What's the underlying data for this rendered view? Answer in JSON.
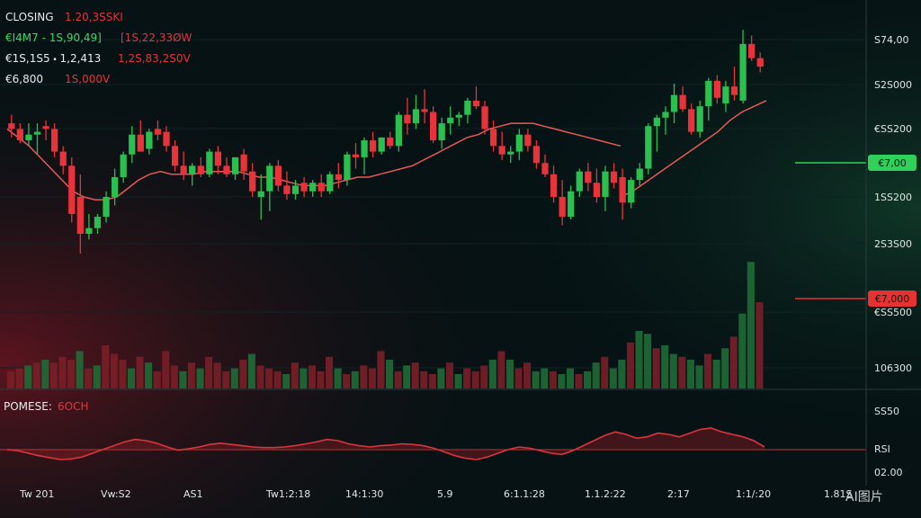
{
  "header": {
    "line1": {
      "label": "CLOSING",
      "value": "1.20,3SSKI"
    },
    "line2": {
      "label": "€I4M7 - 1S,90,49]",
      "value": "[1S,22,33ØW"
    },
    "line3": {
      "label": "€1S,1S5 ⬝ 1,2,413",
      "value": "1,2S,83,2S0V"
    },
    "line4": {
      "label": "€6,800",
      "value": "1S,000V"
    }
  },
  "price_axis_labels": [
    "S74,00",
    "S2S000",
    "€SS200",
    "1SS200",
    "2S3S00",
    "€SS500",
    "106300"
  ],
  "price_tags": [
    {
      "text": "€7,00",
      "color": "#2fd15a"
    },
    {
      "text": "€7,000",
      "color": "#e63232"
    }
  ],
  "indicator": {
    "label": "POMESE:",
    "value": "6OCH",
    "axis_labels": [
      "SS50",
      "RSI",
      "02.00"
    ]
  },
  "time_labels": [
    "Tw 201",
    "Vw:S2",
    "AS1",
    "Tw1:2:18",
    "14:1:30",
    "5.9",
    "6:1.1:28",
    "1.1.2:22",
    "2:17",
    "1:1/:20",
    "1.81S"
  ],
  "watermark": "AI图片",
  "colors": {
    "up": "#2bbf4f",
    "down": "#e8333a",
    "ma": "#e85a5a",
    "rsi": "#d8363c",
    "background": "#061214"
  },
  "chart_data": [
    {
      "type": "candlestick",
      "title": "",
      "xlabel": "",
      "ylabel": "",
      "ylim": [
        0,
        100
      ],
      "candles": [
        {
          "o": 66,
          "h": 69,
          "l": 61,
          "c": 64
        },
        {
          "o": 64,
          "h": 66,
          "l": 59,
          "c": 60
        },
        {
          "o": 60,
          "h": 66,
          "l": 58,
          "c": 62
        },
        {
          "o": 62,
          "h": 66,
          "l": 55,
          "c": 63
        },
        {
          "o": 65,
          "h": 67,
          "l": 60,
          "c": 64
        },
        {
          "o": 64,
          "h": 66,
          "l": 54,
          "c": 56
        },
        {
          "o": 56,
          "h": 58,
          "l": 48,
          "c": 51
        },
        {
          "o": 51,
          "h": 54,
          "l": 31,
          "c": 34
        },
        {
          "o": 40,
          "h": 48,
          "l": 20,
          "c": 27
        },
        {
          "o": 27,
          "h": 34,
          "l": 25,
          "c": 29
        },
        {
          "o": 29,
          "h": 34,
          "l": 27,
          "c": 33
        },
        {
          "o": 33,
          "h": 42,
          "l": 31,
          "c": 40
        },
        {
          "o": 40,
          "h": 50,
          "l": 37,
          "c": 47
        },
        {
          "o": 47,
          "h": 56,
          "l": 45,
          "c": 55
        },
        {
          "o": 55,
          "h": 65,
          "l": 52,
          "c": 62
        },
        {
          "o": 62,
          "h": 67,
          "l": 56,
          "c": 56
        },
        {
          "o": 57,
          "h": 64,
          "l": 55,
          "c": 63
        },
        {
          "o": 64,
          "h": 67,
          "l": 60,
          "c": 62
        },
        {
          "o": 63,
          "h": 65,
          "l": 56,
          "c": 58
        },
        {
          "o": 58,
          "h": 60,
          "l": 49,
          "c": 51
        },
        {
          "o": 51,
          "h": 56,
          "l": 46,
          "c": 48
        },
        {
          "o": 48,
          "h": 52,
          "l": 44,
          "c": 51
        },
        {
          "o": 51,
          "h": 54,
          "l": 47,
          "c": 48
        },
        {
          "o": 48,
          "h": 57,
          "l": 47,
          "c": 56
        },
        {
          "o": 56,
          "h": 58,
          "l": 48,
          "c": 51
        },
        {
          "o": 51,
          "h": 54,
          "l": 47,
          "c": 48
        },
        {
          "o": 48,
          "h": 54,
          "l": 46,
          "c": 54
        },
        {
          "o": 55,
          "h": 57,
          "l": 46,
          "c": 49
        },
        {
          "o": 49,
          "h": 52,
          "l": 40,
          "c": 42
        },
        {
          "o": 40,
          "h": 48,
          "l": 32,
          "c": 42
        },
        {
          "o": 42,
          "h": 52,
          "l": 35,
          "c": 51
        },
        {
          "o": 51,
          "h": 53,
          "l": 42,
          "c": 44
        },
        {
          "o": 44,
          "h": 49,
          "l": 39,
          "c": 41
        },
        {
          "o": 41,
          "h": 46,
          "l": 39,
          "c": 44
        },
        {
          "o": 45,
          "h": 47,
          "l": 40,
          "c": 42
        },
        {
          "o": 42,
          "h": 46,
          "l": 40,
          "c": 45
        },
        {
          "o": 45,
          "h": 48,
          "l": 40,
          "c": 42
        },
        {
          "o": 42,
          "h": 49,
          "l": 41,
          "c": 48
        },
        {
          "o": 48,
          "h": 52,
          "l": 43,
          "c": 46
        },
        {
          "o": 46,
          "h": 56,
          "l": 44,
          "c": 55
        },
        {
          "o": 55,
          "h": 59,
          "l": 50,
          "c": 54
        },
        {
          "o": 54,
          "h": 61,
          "l": 48,
          "c": 60
        },
        {
          "o": 60,
          "h": 63,
          "l": 54,
          "c": 56
        },
        {
          "o": 56,
          "h": 61,
          "l": 55,
          "c": 61
        },
        {
          "o": 61,
          "h": 63,
          "l": 57,
          "c": 58
        },
        {
          "o": 58,
          "h": 70,
          "l": 56,
          "c": 69
        },
        {
          "o": 69,
          "h": 75,
          "l": 62,
          "c": 66
        },
        {
          "o": 66,
          "h": 76,
          "l": 64,
          "c": 71
        },
        {
          "o": 71,
          "h": 78,
          "l": 66,
          "c": 70
        },
        {
          "o": 70,
          "h": 72,
          "l": 59,
          "c": 60
        },
        {
          "o": 60,
          "h": 68,
          "l": 57,
          "c": 66
        },
        {
          "o": 66,
          "h": 72,
          "l": 62,
          "c": 68
        },
        {
          "o": 68,
          "h": 70,
          "l": 65,
          "c": 69
        },
        {
          "o": 69,
          "h": 75,
          "l": 66,
          "c": 74
        },
        {
          "o": 74,
          "h": 79,
          "l": 71,
          "c": 72
        },
        {
          "o": 72,
          "h": 74,
          "l": 62,
          "c": 64
        },
        {
          "o": 64,
          "h": 67,
          "l": 56,
          "c": 58
        },
        {
          "o": 58,
          "h": 63,
          "l": 53,
          "c": 55
        },
        {
          "o": 55,
          "h": 58,
          "l": 52,
          "c": 56
        },
        {
          "o": 56,
          "h": 64,
          "l": 53,
          "c": 62
        },
        {
          "o": 62,
          "h": 64,
          "l": 56,
          "c": 58
        },
        {
          "o": 58,
          "h": 60,
          "l": 50,
          "c": 52
        },
        {
          "o": 52,
          "h": 55,
          "l": 47,
          "c": 48
        },
        {
          "o": 48,
          "h": 51,
          "l": 38,
          "c": 40
        },
        {
          "o": 40,
          "h": 46,
          "l": 30,
          "c": 33
        },
        {
          "o": 33,
          "h": 44,
          "l": 32,
          "c": 42
        },
        {
          "o": 42,
          "h": 50,
          "l": 40,
          "c": 49
        },
        {
          "o": 49,
          "h": 52,
          "l": 42,
          "c": 45
        },
        {
          "o": 45,
          "h": 50,
          "l": 38,
          "c": 40
        },
        {
          "o": 40,
          "h": 51,
          "l": 35,
          "c": 49
        },
        {
          "o": 49,
          "h": 52,
          "l": 43,
          "c": 45
        },
        {
          "o": 47,
          "h": 50,
          "l": 32,
          "c": 38
        },
        {
          "o": 38,
          "h": 47,
          "l": 36,
          "c": 46
        },
        {
          "o": 46,
          "h": 52,
          "l": 44,
          "c": 50
        },
        {
          "o": 50,
          "h": 66,
          "l": 48,
          "c": 65
        },
        {
          "o": 65,
          "h": 69,
          "l": 56,
          "c": 68
        },
        {
          "o": 68,
          "h": 72,
          "l": 62,
          "c": 70
        },
        {
          "o": 70,
          "h": 80,
          "l": 66,
          "c": 76
        },
        {
          "o": 76,
          "h": 79,
          "l": 70,
          "c": 71
        },
        {
          "o": 71,
          "h": 73,
          "l": 62,
          "c": 63
        },
        {
          "o": 63,
          "h": 74,
          "l": 61,
          "c": 72
        },
        {
          "o": 72,
          "h": 82,
          "l": 67,
          "c": 81
        },
        {
          "o": 81,
          "h": 83,
          "l": 73,
          "c": 75
        },
        {
          "o": 73,
          "h": 81,
          "l": 70,
          "c": 79
        },
        {
          "o": 79,
          "h": 86,
          "l": 74,
          "c": 76
        },
        {
          "o": 74,
          "h": 99,
          "l": 73,
          "c": 94
        },
        {
          "o": 94,
          "h": 97,
          "l": 88,
          "c": 89
        },
        {
          "o": 89,
          "h": 91,
          "l": 84,
          "c": 86
        }
      ],
      "moving_average_1": [
        64,
        61,
        58,
        54,
        50,
        46,
        42,
        40,
        39,
        39,
        40,
        43,
        46,
        48,
        49,
        48,
        48,
        48,
        49,
        49,
        49,
        49,
        48,
        47,
        47,
        46,
        45,
        44,
        44,
        44,
        45,
        46,
        47,
        47,
        48,
        49,
        50,
        51,
        53,
        55,
        57,
        59,
        61,
        62,
        64,
        65,
        66,
        66,
        66,
        65,
        64,
        63,
        62,
        61,
        60,
        59,
        58
      ],
      "moving_average_2": [
        40,
        42,
        45,
        48,
        51,
        54,
        57,
        60,
        63,
        67,
        70,
        72,
        74
      ],
      "volume": [
        12,
        14,
        16,
        18,
        20,
        18,
        22,
        20,
        26,
        14,
        16,
        30,
        24,
        20,
        14,
        22,
        18,
        12,
        26,
        16,
        12,
        18,
        14,
        22,
        18,
        12,
        14,
        20,
        24,
        16,
        14,
        12,
        10,
        18,
        14,
        16,
        12,
        22,
        14,
        10,
        12,
        16,
        14,
        26,
        20,
        12,
        16,
        18,
        12,
        10,
        14,
        18,
        10,
        14,
        12,
        16,
        20,
        26,
        20,
        14,
        18,
        12,
        14,
        12,
        10,
        14,
        10,
        12,
        18,
        22,
        14,
        20,
        32,
        40,
        38,
        28,
        30,
        24,
        22,
        20,
        16,
        24,
        20,
        28,
        36,
        52,
        88,
        60
      ]
    },
    {
      "type": "line",
      "name": "RSI",
      "values": [
        46,
        44,
        40,
        36,
        33,
        30,
        31,
        34,
        40,
        46,
        52,
        58,
        62,
        60,
        56,
        50,
        45,
        47,
        50,
        54,
        56,
        54,
        52,
        50,
        49,
        49,
        50,
        52,
        55,
        58,
        62,
        60,
        55,
        52,
        50,
        52,
        53,
        55,
        54,
        52,
        48,
        42,
        36,
        32,
        30,
        34,
        40,
        46,
        50,
        48,
        44,
        40,
        38,
        44,
        52,
        60,
        68,
        74,
        70,
        64,
        66,
        72,
        70,
        66,
        72,
        78,
        80,
        74,
        70,
        66,
        60,
        50
      ]
    }
  ]
}
